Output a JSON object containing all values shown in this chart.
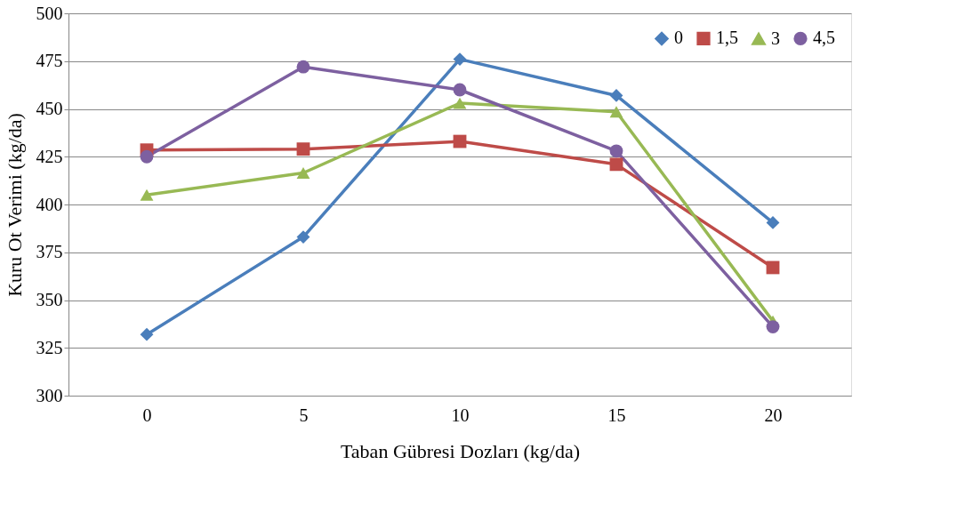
{
  "chart_data": {
    "type": "line",
    "xlabel": "Taban Gübresi Dozları (kg/da)",
    "ylabel": "Kuru Ot Verimi  (kg/da)",
    "categories": [
      "0",
      "5",
      "10",
      "15",
      "20"
    ],
    "series": [
      {
        "name": "0",
        "color": "#4a7ebb",
        "marker": "diamond",
        "values": [
          332,
          383,
          476,
          457,
          390.5
        ]
      },
      {
        "name": "1,5",
        "color": "#be4b48",
        "marker": "square",
        "values": [
          428.5,
          429,
          433,
          421,
          367
        ]
      },
      {
        "name": "3",
        "color": "#98b954",
        "marker": "triangle",
        "values": [
          405,
          416.5,
          453,
          448.5,
          339
        ]
      },
      {
        "name": "4,5",
        "color": "#7d60a0",
        "marker": "circle",
        "values": [
          425,
          472,
          460,
          428,
          336
        ]
      }
    ],
    "ylim": [
      300,
      500
    ],
    "yticks": [
      300,
      325,
      350,
      375,
      400,
      425,
      450,
      475,
      500
    ],
    "grid": "y",
    "legend": "top right",
    "line_style": "solid"
  }
}
